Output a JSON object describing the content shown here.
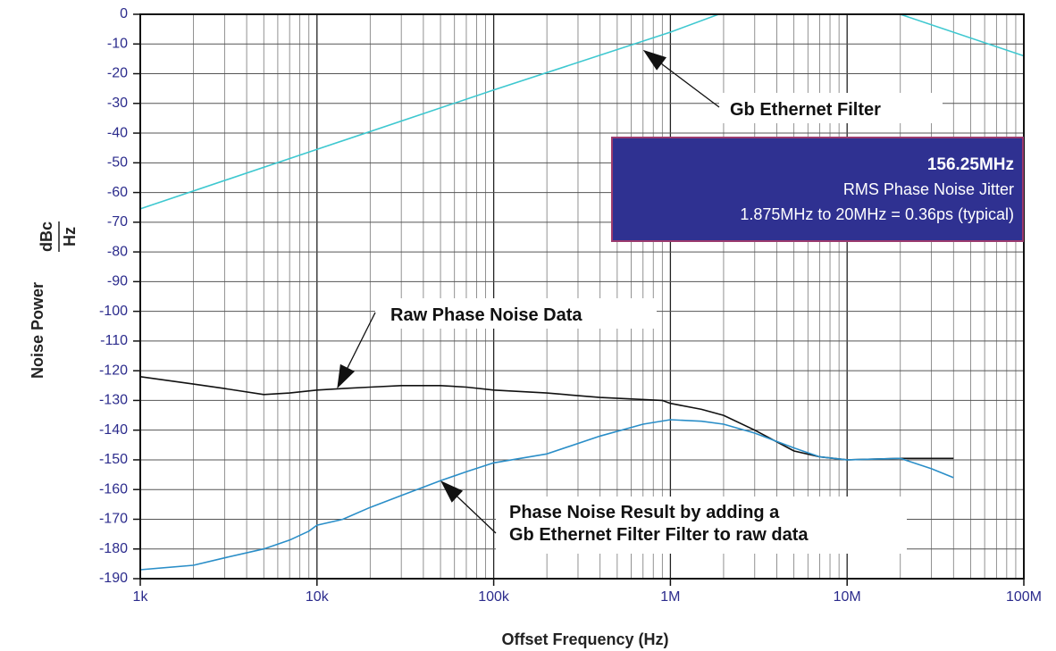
{
  "chart_data": {
    "type": "line",
    "title": "",
    "xlabel": "Offset Frequency (Hz)",
    "ylabel": "Noise Power",
    "ylabel_unit_num": "dBc",
    "ylabel_unit_den": "Hz",
    "x_scale": "log",
    "xlim": [
      1000,
      100000000
    ],
    "ylim": [
      -190,
      0
    ],
    "grid": true,
    "x_ticks": [
      {
        "value": 1000,
        "label": "1k"
      },
      {
        "value": 10000,
        "label": "10k"
      },
      {
        "value": 100000,
        "label": "100k"
      },
      {
        "value": 1000000,
        "label": "1M"
      },
      {
        "value": 10000000,
        "label": "10M"
      },
      {
        "value": 100000000,
        "label": "100M"
      }
    ],
    "y_ticks": [
      0,
      -10,
      -20,
      -30,
      -40,
      -50,
      -60,
      -70,
      -80,
      -90,
      -100,
      -110,
      -120,
      -130,
      -140,
      -150,
      -160,
      -170,
      -180,
      -190
    ],
    "series": [
      {
        "color": "#3ec8d0",
        "points": [
          [
            1000,
            -65.5
          ],
          [
            10000,
            -45.5
          ],
          [
            100000,
            -25.5
          ],
          [
            1000000,
            -6
          ],
          [
            1875000,
            0
          ],
          [
            20000000,
            0
          ],
          [
            100000000,
            -14
          ]
        ]
      },
      {
        "color": "#111111",
        "points": [
          [
            1000,
            -122
          ],
          [
            2000,
            -124.5
          ],
          [
            3000,
            -126
          ],
          [
            5000,
            -128
          ],
          [
            7000,
            -127.5
          ],
          [
            10000,
            -126.5
          ],
          [
            14000,
            -126
          ],
          [
            20000,
            -125.5
          ],
          [
            30000,
            -125
          ],
          [
            50000,
            -125
          ],
          [
            70000,
            -125.5
          ],
          [
            100000,
            -126.5
          ],
          [
            200000,
            -127.5
          ],
          [
            400000,
            -129
          ],
          [
            900000,
            -130
          ],
          [
            1000000,
            -131
          ],
          [
            1500000,
            -133
          ],
          [
            2000000,
            -135
          ],
          [
            3000000,
            -140
          ],
          [
            5000000,
            -147
          ],
          [
            7000000,
            -149
          ],
          [
            10000000,
            -150
          ],
          [
            20000000,
            -149.5
          ],
          [
            40000000,
            -149.5
          ]
        ]
      },
      {
        "color": "#2a8ec8",
        "points": [
          [
            1000,
            -187
          ],
          [
            2000,
            -185.5
          ],
          [
            3000,
            -183
          ],
          [
            5000,
            -180
          ],
          [
            7000,
            -177
          ],
          [
            9000,
            -174
          ],
          [
            10000,
            -172
          ],
          [
            14000,
            -170
          ],
          [
            20000,
            -166
          ],
          [
            30000,
            -162
          ],
          [
            50000,
            -157
          ],
          [
            70000,
            -154
          ],
          [
            100000,
            -151
          ],
          [
            200000,
            -148
          ],
          [
            400000,
            -142
          ],
          [
            700000,
            -138
          ],
          [
            1000000,
            -136.5
          ],
          [
            1500000,
            -137
          ],
          [
            2000000,
            -138
          ],
          [
            3000000,
            -141
          ],
          [
            5000000,
            -146
          ],
          [
            7000000,
            -149
          ],
          [
            10000000,
            -150
          ],
          [
            20000000,
            -149.5
          ],
          [
            30000000,
            -153
          ],
          [
            40000000,
            -156
          ]
        ]
      }
    ],
    "annotations": [
      {
        "text": "Gb Ethernet Filter",
        "target": [
          700000,
          -12
        ]
      },
      {
        "text": "Raw Phase Noise Data",
        "target": [
          13000,
          -126
        ]
      },
      {
        "lines": [
          "Phase Noise Result by adding a",
          "Gb Ethernet Filter Filter to raw data"
        ],
        "target": [
          50000,
          -157
        ]
      }
    ],
    "info_box": {
      "title": "156.25MHz",
      "line1": "RMS Phase Noise Jitter",
      "line2": "1.875MHz to 20MHz = 0.36ps (typical)",
      "bg_color": "#2f3191",
      "border_color": "#9b3a6e"
    }
  }
}
